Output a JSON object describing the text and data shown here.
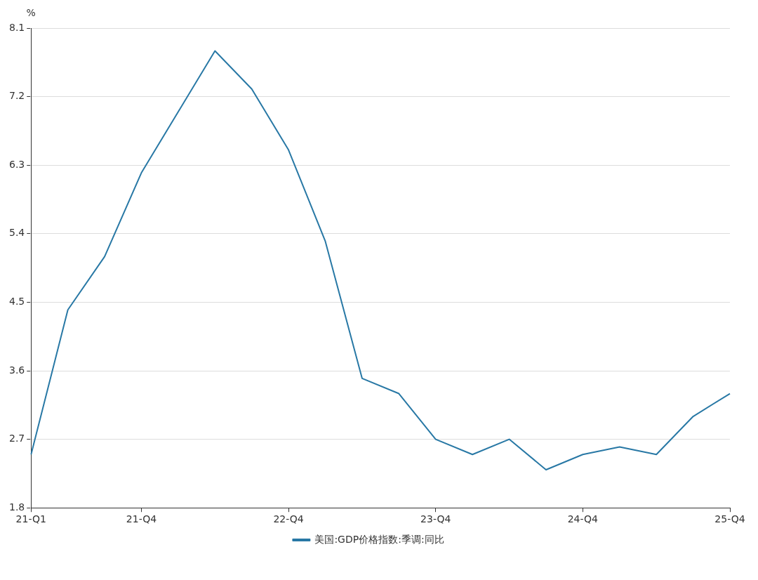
{
  "chart_data": {
    "type": "line",
    "ylabel": "%",
    "categories": [
      "21-Q1",
      null,
      null,
      "21-Q4",
      null,
      null,
      null,
      "22-Q4",
      null,
      null,
      null,
      "23-Q4",
      null,
      null,
      null,
      "24-Q4",
      null,
      null,
      null,
      "25-Q4"
    ],
    "series": [
      {
        "name": "美国:GDP价格指数:季调:同比",
        "color": "#2878a5",
        "values": [
          2.5,
          4.4,
          5.1,
          6.2,
          7.0,
          7.8,
          7.3,
          6.5,
          5.3,
          3.5,
          3.3,
          2.7,
          2.5,
          2.7,
          2.3,
          2.5,
          2.6,
          2.5,
          3.0,
          3.3
        ]
      }
    ],
    "ylim": [
      1.8,
      8.1
    ],
    "yticks": [
      1.8,
      2.7,
      3.6,
      4.5,
      5.4,
      6.3,
      7.2,
      8.1
    ],
    "grid": "y",
    "legend": "bottom",
    "marker": "none",
    "line_style": "solid"
  }
}
